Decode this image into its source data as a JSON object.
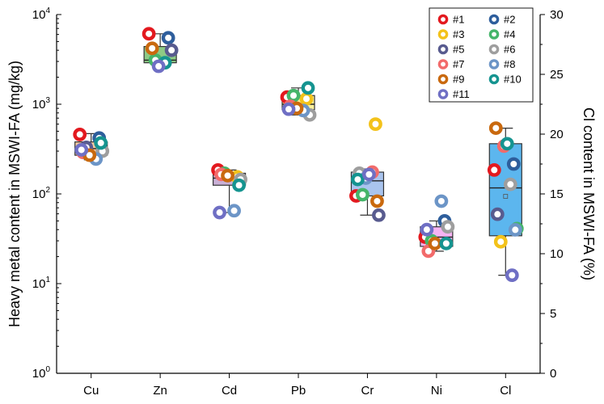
{
  "chart_data": {
    "type": "box-scatter",
    "categories": [
      "Cu",
      "Zn",
      "Cd",
      "Pb",
      "Cr",
      "Ni",
      "Cl"
    ],
    "ylabel_left": "Heavy metal content in MSWI-FA (mg/kg)",
    "ylabel_right": "Cl content in MSWI-FA (%)",
    "left_axis": {
      "scale": "log",
      "ylim": [
        1,
        10000
      ],
      "ticks": [
        {
          "value": 1,
          "base": "10",
          "exp": "0"
        },
        {
          "value": 10,
          "base": "10",
          "exp": "1"
        },
        {
          "value": 100,
          "base": "10",
          "exp": "2"
        },
        {
          "value": 1000,
          "base": "10",
          "exp": "3"
        },
        {
          "value": 10000,
          "base": "10",
          "exp": "4"
        }
      ]
    },
    "right_axis": {
      "scale": "linear",
      "ylim": [
        0,
        30
      ],
      "ticks": [
        "0",
        "5",
        "10",
        "15",
        "20",
        "25",
        "30"
      ]
    },
    "legend": {
      "placement": "top-right",
      "entries": [
        {
          "id": "1",
          "label": "#1",
          "color": "#e3191f"
        },
        {
          "id": "2",
          "label": "#2",
          "color": "#2e5e9c"
        },
        {
          "id": "3",
          "label": "#3",
          "color": "#f3c21a"
        },
        {
          "id": "4",
          "label": "#4",
          "color": "#45b56a"
        },
        {
          "id": "5",
          "label": "#5",
          "color": "#585b8f"
        },
        {
          "id": "6",
          "label": "#6",
          "color": "#9e9e9e"
        },
        {
          "id": "7",
          "label": "#7",
          "color": "#f26b6b"
        },
        {
          "id": "8",
          "label": "#8",
          "color": "#6c95c7"
        },
        {
          "id": "9",
          "label": "#9",
          "color": "#c9690e"
        },
        {
          "id": "10",
          "label": "#10",
          "color": "#159490"
        },
        {
          "id": "11",
          "label": "#11",
          "color": "#6f6fc4"
        }
      ]
    },
    "boxes": [
      {
        "category": "Cu",
        "axis": "left",
        "fill": "#f7caa0",
        "q1": 270,
        "median": 320,
        "q3": 380,
        "whisker_low": 240,
        "whisker_high": 470
      },
      {
        "category": "Zn",
        "axis": "left",
        "fill": "#8dca85",
        "q1": 2900,
        "median": 3100,
        "q3": 4400,
        "whisker_low": 2650,
        "whisker_high": 6100
      },
      {
        "category": "Cd",
        "axis": "left",
        "fill": "#c9b0d6",
        "q1": 125,
        "median": 150,
        "q3": 170,
        "whisker_low": 62,
        "whisker_high": 185
      },
      {
        "category": "Pb",
        "axis": "left",
        "fill": "#fbf09a",
        "q1": 870,
        "median": 1000,
        "q3": 1250,
        "whisker_low": 760,
        "whisker_high": 1520
      },
      {
        "category": "Cr",
        "axis": "left",
        "fill": "#a9c4ee",
        "q1": 95,
        "median": 140,
        "q3": 175,
        "whisker_low": 58,
        "whisker_high": 190
      },
      {
        "category": "Ni",
        "axis": "left",
        "fill": "#f6b3f2",
        "q1": 26,
        "median": 33,
        "q3": 43,
        "whisker_low": 23,
        "whisker_high": 50
      },
      {
        "category": "Cl",
        "axis": "right",
        "fill": "#5cb6ee",
        "q1": 11.5,
        "median": 15.5,
        "q3": 19.2,
        "whisker_low": 8.2,
        "whisker_high": 20.5,
        "mean": 14.8
      }
    ],
    "points": [
      {
        "category": "Cu",
        "axis": "left",
        "values": {
          "1": 460,
          "2": 420,
          "5": 330,
          "6": 300,
          "7": 290,
          "8": 245,
          "9": 270,
          "10": 370,
          "11": 310
        }
      },
      {
        "category": "Zn",
        "axis": "left",
        "values": {
          "1": 6100,
          "2": 5500,
          "4": 3100,
          "5": 4000,
          "9": 4200,
          "10": 2900,
          "11": 2650
        }
      },
      {
        "category": "Cd",
        "axis": "left",
        "values": {
          "1": 185,
          "3": 155,
          "4": 170,
          "6": 145,
          "7": 165,
          "9": 160,
          "8": 65,
          "11": 62,
          "10": 125
        }
      },
      {
        "category": "Pb",
        "axis": "left",
        "values": {
          "1": 1200,
          "3": 1150,
          "4": 1250,
          "6": 760,
          "7": 950,
          "8": 850,
          "9": 900,
          "10": 1520,
          "11": 880
        }
      },
      {
        "category": "Cr",
        "axis": "left",
        "values": {
          "3": 600,
          "7": 175,
          "6": 170,
          "8": 150,
          "11": 165,
          "10": 145,
          "1": 95,
          "4": 98,
          "9": 83,
          "5": 58
        }
      },
      {
        "category": "Ni",
        "axis": "left",
        "values": {
          "8": 83,
          "2": 50,
          "6": 43,
          "11": 40,
          "1": 33,
          "9": 28,
          "10": 28,
          "7": 23,
          "4": 30
        }
      },
      {
        "category": "Cl",
        "axis": "right",
        "values": {
          "9": 20.5,
          "7": 19.0,
          "10": 19.2,
          "2": 17.5,
          "1": 17.0,
          "6": 15.8,
          "5": 13.3,
          "8": 12.0,
          "4": 12.1,
          "3": 11.0,
          "11": 8.2
        }
      }
    ]
  }
}
